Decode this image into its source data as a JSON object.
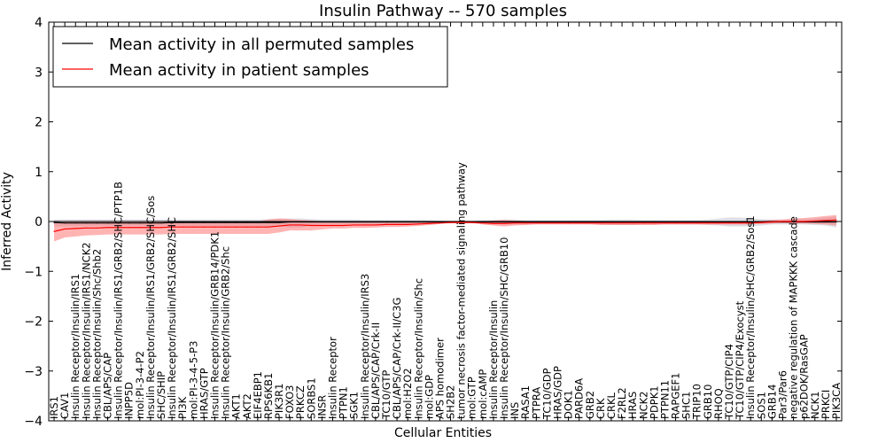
{
  "chart_data": {
    "type": "line",
    "title": "Insulin Pathway -- 570 samples",
    "xlabel": "Cellular Entities",
    "ylabel": "Inferred Activity",
    "ylim": [
      -4,
      4
    ],
    "yticks": [
      -4,
      -3,
      -2,
      -1,
      0,
      1,
      2,
      3,
      4
    ],
    "ytick_labels": [
      "−4",
      "−3",
      "−2",
      "−1",
      "0",
      "1",
      "2",
      "3",
      "4"
    ],
    "grid": false,
    "legend_position": "top-left",
    "categories": [
      "IRS1",
      "CAV1",
      "Insulin Receptor/Insulin/IRS1",
      "Insulin Receptor/Insulin/IRS1/NCK2",
      "Insulin Receptor/Insulin/Shc/Shb2",
      "CBL/APS/CAP",
      "Insulin Receptor/Insulin/IRS1/GRB2/SHC/PTP1B",
      "INPP5D",
      "mol:PI-3-4-P2",
      "Insulin Receptor/Insulin/IRS1/GRB2/SHC/Sos",
      "SHC/SHIP",
      "Insulin Receptor/Insulin/IRS1/GRB2/SHC",
      "PI3K",
      "mol:PI-3-4-5-P3",
      "HRAS/GTP",
      "Insulin Receptor/Insulin/GRB14/PDK1",
      "Insulin Receptor/Insulin/GRB2/Shc",
      "AKT1",
      "AKT2",
      "EIF4EBP1",
      "RPS6KB1",
      "PIK3R1",
      "FOXO3",
      "PRKCZ",
      "SORBS1",
      "INSR",
      "Insulin Receptor",
      "PTPN1",
      "SGK1",
      "Insulin Receptor/Insulin/IRS3",
      "CBL/APS/CAP/Crk-II",
      "TC10/GTP",
      "CBL/APS/CAP/Crk-II/C3G",
      "mol:H2O2",
      "Insulin Receptor/Insulin/Shc",
      "mol:GDP",
      "APS homodimer",
      "SH2B2",
      "tumor necrosis factor-mediated signaling pathway",
      "mol:GTP",
      "mol:cAMP",
      "Insulin Receptor/Insulin",
      "Insulin Receptor/Insulin/SHC/GRB10",
      "INS",
      "RASA1",
      "PTPRA",
      "TC10/GDP",
      "HRAS/GDP",
      "DOK1",
      "PARD6A",
      "GRB2",
      "CRK",
      "CRKL",
      "F2RL2",
      "HRAS",
      "NCK2",
      "PDPK1",
      "PTPN11",
      "RAPGEF1",
      "SHC1",
      "TRIP10",
      "GRB10",
      "RHOQ",
      "TC10/GTP/CIP4",
      "TC10/GTP/CIP4/Exocyst",
      "Insulin Receptor/Insulin/SHC/GRB2/Sos1",
      "SOS1",
      "GRB14",
      "Par3/Par6",
      "negative regulation of MAPKKK cascade",
      "p62DOK/RasGAP",
      "NCK1",
      "PRKCI",
      "PIK3CA"
    ],
    "series": [
      {
        "name": "Mean activity in all permuted samples",
        "color": "#000000",
        "values": [
          -0.02,
          -0.03,
          -0.03,
          -0.03,
          -0.03,
          -0.03,
          -0.03,
          -0.03,
          -0.03,
          -0.03,
          -0.03,
          -0.02,
          -0.02,
          -0.02,
          -0.02,
          -0.02,
          -0.02,
          -0.02,
          -0.02,
          -0.02,
          -0.02,
          -0.02,
          -0.01,
          -0.01,
          -0.01,
          -0.01,
          -0.01,
          -0.01,
          -0.01,
          -0.01,
          -0.01,
          -0.01,
          -0.01,
          -0.01,
          -0.01,
          -0.01,
          -0.01,
          -0.01,
          -0.01,
          -0.01,
          -0.01,
          -0.01,
          -0.01,
          -0.01,
          -0.01,
          -0.01,
          -0.01,
          -0.01,
          -0.01,
          -0.01,
          -0.01,
          -0.01,
          -0.01,
          -0.01,
          -0.01,
          -0.01,
          -0.01,
          -0.01,
          -0.01,
          -0.01,
          -0.01,
          -0.01,
          -0.01,
          -0.01,
          -0.01,
          -0.01,
          -0.01,
          -0.01,
          -0.01,
          -0.01,
          -0.01,
          -0.01,
          -0.01,
          -0.01
        ],
        "spread_low": [
          -0.1,
          -0.1,
          -0.1,
          -0.1,
          -0.09,
          -0.09,
          -0.09,
          -0.09,
          -0.09,
          -0.09,
          -0.09,
          -0.09,
          -0.09,
          -0.09,
          -0.09,
          -0.09,
          -0.09,
          -0.09,
          -0.09,
          -0.09,
          -0.09,
          -0.1,
          -0.12,
          -0.12,
          -0.08,
          -0.06,
          -0.06,
          -0.06,
          -0.05,
          -0.06,
          -0.06,
          -0.05,
          -0.05,
          -0.05,
          -0.05,
          -0.04,
          -0.04,
          -0.03,
          -0.03,
          -0.03,
          -0.04,
          -0.05,
          -0.06,
          -0.06,
          -0.06,
          -0.05,
          -0.05,
          -0.05,
          -0.05,
          -0.05,
          -0.05,
          -0.06,
          -0.07,
          -0.07,
          -0.07,
          -0.06,
          -0.06,
          -0.06,
          -0.06,
          -0.06,
          -0.06,
          -0.07,
          -0.08,
          -0.1,
          -0.1,
          -0.1,
          -0.08,
          -0.06,
          -0.06,
          -0.06,
          -0.06,
          -0.07,
          -0.08,
          -0.12
        ],
        "spread_high": [
          0.04,
          0.04,
          0.04,
          0.04,
          0.04,
          0.04,
          0.04,
          0.04,
          0.04,
          0.04,
          0.04,
          0.04,
          0.04,
          0.04,
          0.04,
          0.04,
          0.04,
          0.04,
          0.04,
          0.04,
          0.05,
          0.06,
          0.06,
          0.06,
          0.05,
          0.04,
          0.04,
          0.04,
          0.04,
          0.03,
          0.03,
          0.03,
          0.03,
          0.03,
          0.03,
          0.03,
          0.02,
          0.02,
          0.02,
          0.02,
          0.03,
          0.03,
          0.04,
          0.04,
          0.03,
          0.03,
          0.03,
          0.03,
          0.03,
          0.03,
          0.03,
          0.03,
          0.04,
          0.04,
          0.04,
          0.03,
          0.03,
          0.03,
          0.03,
          0.03,
          0.03,
          0.04,
          0.06,
          0.08,
          0.08,
          0.06,
          0.05,
          0.04,
          0.04,
          0.04,
          0.05,
          0.06,
          0.08,
          0.1
        ]
      },
      {
        "name": "Mean activity in patient samples",
        "color": "#ff0000",
        "values": [
          -0.2,
          -0.15,
          -0.14,
          -0.13,
          -0.13,
          -0.12,
          -0.12,
          -0.12,
          -0.12,
          -0.12,
          -0.12,
          -0.11,
          -0.11,
          -0.11,
          -0.11,
          -0.11,
          -0.11,
          -0.11,
          -0.11,
          -0.11,
          -0.11,
          -0.09,
          -0.07,
          -0.07,
          -0.08,
          -0.08,
          -0.08,
          -0.08,
          -0.07,
          -0.07,
          -0.07,
          -0.06,
          -0.06,
          -0.06,
          -0.05,
          -0.04,
          -0.03,
          -0.02,
          -0.02,
          -0.02,
          -0.03,
          -0.04,
          -0.04,
          -0.03,
          -0.03,
          -0.03,
          -0.03,
          -0.03,
          -0.03,
          -0.03,
          -0.03,
          -0.03,
          -0.03,
          -0.03,
          -0.03,
          -0.03,
          -0.03,
          -0.03,
          -0.03,
          -0.03,
          -0.03,
          -0.03,
          -0.03,
          -0.03,
          -0.03,
          -0.03,
          -0.02,
          -0.01,
          0.0,
          0.0,
          0.0,
          0.01,
          0.02,
          0.03
        ],
        "spread_low": [
          -0.4,
          -0.32,
          -0.3,
          -0.28,
          -0.27,
          -0.26,
          -0.26,
          -0.26,
          -0.26,
          -0.26,
          -0.26,
          -0.25,
          -0.25,
          -0.25,
          -0.25,
          -0.25,
          -0.25,
          -0.25,
          -0.25,
          -0.25,
          -0.25,
          -0.22,
          -0.18,
          -0.18,
          -0.18,
          -0.16,
          -0.14,
          -0.14,
          -0.13,
          -0.13,
          -0.12,
          -0.11,
          -0.11,
          -0.1,
          -0.09,
          -0.07,
          -0.05,
          -0.03,
          -0.03,
          -0.03,
          -0.06,
          -0.08,
          -0.1,
          -0.08,
          -0.07,
          -0.06,
          -0.06,
          -0.06,
          -0.06,
          -0.06,
          -0.06,
          -0.07,
          -0.07,
          -0.07,
          -0.07,
          -0.07,
          -0.07,
          -0.06,
          -0.06,
          -0.06,
          -0.06,
          -0.06,
          -0.06,
          -0.06,
          -0.06,
          -0.06,
          -0.05,
          -0.04,
          -0.03,
          -0.04,
          -0.04,
          -0.05,
          -0.06,
          -0.08
        ],
        "spread_high": [
          -0.02,
          -0.01,
          -0.01,
          -0.01,
          -0.01,
          -0.01,
          -0.01,
          -0.01,
          -0.01,
          -0.01,
          -0.01,
          -0.01,
          -0.01,
          -0.01,
          -0.01,
          -0.01,
          -0.01,
          -0.01,
          -0.01,
          0.0,
          0.04,
          0.06,
          0.05,
          0.03,
          0.02,
          0.01,
          0.0,
          0.0,
          0.0,
          0.0,
          0.0,
          0.0,
          0.0,
          0.0,
          0.0,
          0.0,
          0.0,
          0.0,
          0.0,
          0.0,
          0.0,
          0.02,
          0.03,
          0.02,
          0.01,
          0.0,
          0.0,
          0.0,
          0.0,
          0.0,
          0.0,
          0.0,
          0.0,
          0.0,
          0.0,
          0.0,
          0.0,
          0.0,
          0.0,
          0.0,
          0.0,
          0.0,
          0.0,
          0.0,
          0.0,
          0.0,
          0.01,
          0.03,
          0.04,
          0.06,
          0.07,
          0.09,
          0.11,
          0.13
        ]
      }
    ]
  }
}
